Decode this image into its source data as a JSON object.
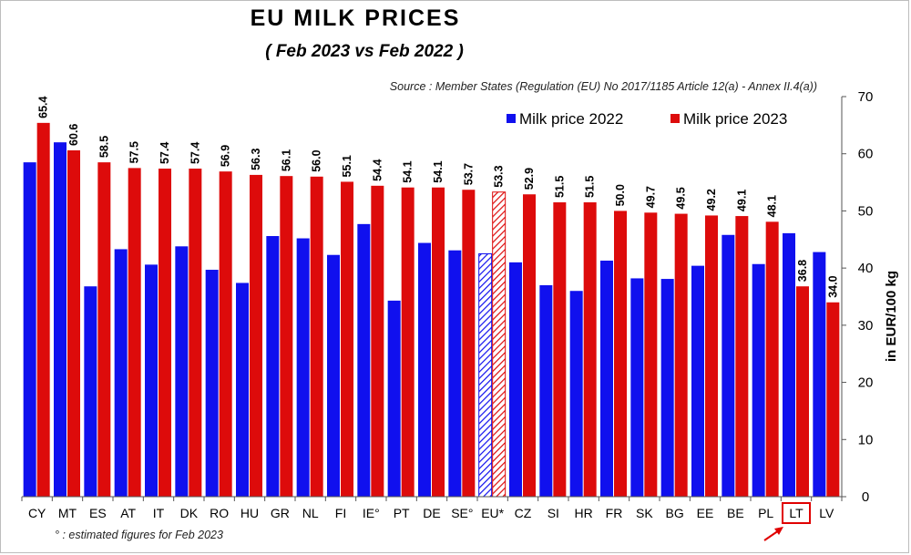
{
  "header": {
    "title": "EU  MILK  PRICES",
    "subtitle": "( Feb 2023    vs    Feb 2022 )",
    "source": "Source : Member States (Regulation (EU) No 2017/1185 Article 12(a) - Annex II.4(a))",
    "footnote": "° : estimated figures for Feb 2023"
  },
  "colors": {
    "series_2022": "#1010ee",
    "series_2023": "#dd0b0b",
    "highlight_box": "#e00000",
    "axis": "#555555"
  },
  "chart_data": {
    "type": "bar",
    "title": "EU  MILK  PRICES",
    "subtitle": "( Feb 2023    vs    Feb 2022 )",
    "xlabel": "",
    "ylabel": "in EUR/100 kg",
    "y_axis_side": "right",
    "ylim": [
      0,
      70
    ],
    "yticks": [
      0,
      10,
      20,
      30,
      40,
      50,
      60,
      70
    ],
    "grid": false,
    "legend_position": "top-right",
    "categories": [
      "CY",
      "MT",
      "ES",
      "AT",
      "IT",
      "DK",
      "RO",
      "HU",
      "GR",
      "NL",
      "FI",
      "IE°",
      "PT",
      "DE",
      "SE°",
      "EU*",
      "CZ",
      "SI",
      "HR",
      "FR",
      "SK",
      "BG",
      "EE",
      "BE",
      "PL",
      "LT",
      "LV"
    ],
    "hatched_category": "EU*",
    "highlighted_category": "LT",
    "series": [
      {
        "name": "Milk price 2022",
        "values": [
          58.5,
          62.0,
          36.8,
          43.3,
          40.6,
          43.8,
          39.7,
          37.4,
          45.6,
          45.2,
          42.3,
          47.7,
          34.3,
          44.4,
          43.1,
          42.5,
          41.0,
          37.0,
          36.0,
          41.3,
          38.2,
          38.1,
          40.4,
          45.8,
          40.7,
          46.1,
          42.8
        ]
      },
      {
        "name": "Milk price 2023",
        "values": [
          65.4,
          60.6,
          58.5,
          57.5,
          57.4,
          57.4,
          56.9,
          56.3,
          56.1,
          56.0,
          55.1,
          54.4,
          54.1,
          54.1,
          53.7,
          53.3,
          52.9,
          51.5,
          51.5,
          50.0,
          49.7,
          49.5,
          49.2,
          49.1,
          48.1,
          36.8,
          34.0
        ],
        "data_labels": [
          "65.4",
          "60.6",
          "58.5",
          "57.5",
          "57.4",
          "57.4",
          "56.9",
          "56.3",
          "56.1",
          "56.0",
          "55.1",
          "54.4",
          "54.1",
          "54.1",
          "53.7",
          "53.3",
          "52.9",
          "51.5",
          "51.5",
          "50.0",
          "49.7",
          "49.5",
          "49.2",
          "49.1",
          "48.1",
          "36.8",
          "34.0"
        ]
      }
    ]
  }
}
